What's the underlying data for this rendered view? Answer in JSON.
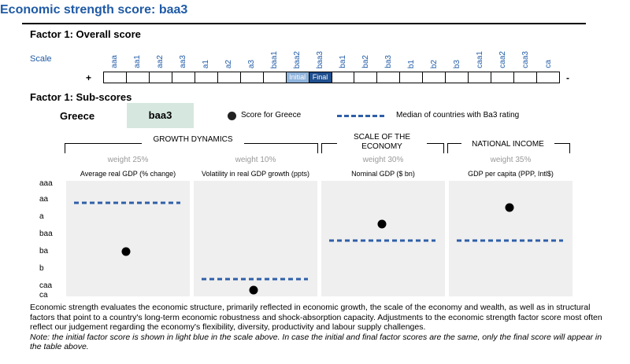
{
  "title": "Economic strength score: baa3",
  "factor1_heading": "Factor 1: Overall score",
  "scale_label": "Scale",
  "ratings": [
    "aaa",
    "aa1",
    "aa2",
    "aa3",
    "a1",
    "a2",
    "a3",
    "baa1",
    "baa2",
    "baa3",
    "ba1",
    "ba2",
    "ba3",
    "b1",
    "b2",
    "b3",
    "caa1",
    "caa2",
    "caa3",
    "ca"
  ],
  "scale": {
    "initial_label": "Initial",
    "final_label": "Final",
    "initial_rating": "baa2",
    "final_rating": "baa3",
    "plus": "+",
    "minus": "-"
  },
  "subscores_heading": "Factor 1: Sub-scores",
  "country": "Greece",
  "country_score": "baa3",
  "legend": {
    "dot_label": "Score for Greece",
    "dash_label": "Median of countries with Ba3 rating",
    "dot_color": "#000000",
    "dash_color": "#2f5fa8"
  },
  "groups": [
    {
      "label": "GROWTH DYNAMICS"
    },
    {
      "label": "SCALE OF THE ECONOMY"
    },
    {
      "label": "NATIONAL INCOME"
    }
  ],
  "chart_data": {
    "type": "scatter",
    "y_categories": [
      "aaa",
      "aa",
      "a",
      "baa",
      "ba",
      "b",
      "caa",
      "ca"
    ],
    "panels": [
      {
        "weight": "weight 25%",
        "label": "Average real GDP (% change)",
        "score": "ba",
        "median": "aa"
      },
      {
        "weight": "weight 10%",
        "label": "Volatility in real GDP growth (ppts)",
        "score": "ca",
        "median": "caa"
      },
      {
        "weight": "weight 30%",
        "label": "Nominal GDP ($ bn)",
        "score": "baa",
        "median": "ba"
      },
      {
        "weight": "weight 35%",
        "label": "GDP per capita (PPP, Intl$)",
        "score": "a",
        "median": "ba"
      }
    ]
  },
  "paragraph": "Economic strength evaluates the economic structure, primarily reflected in economic growth, the scale of the economy and wealth, as well as in structural factors that point to a country's long-term economic robustness and shock-absorption capacity. Adjustments to the economic strength factor score most often reflect our judgement regarding the economy's flexibility, diversity, productivity and labour supply challenges.",
  "note": "Note: the initial factor score is shown in light blue in the scale above. In case the initial and final factor scores are the same, only the final score will appear in the table above."
}
